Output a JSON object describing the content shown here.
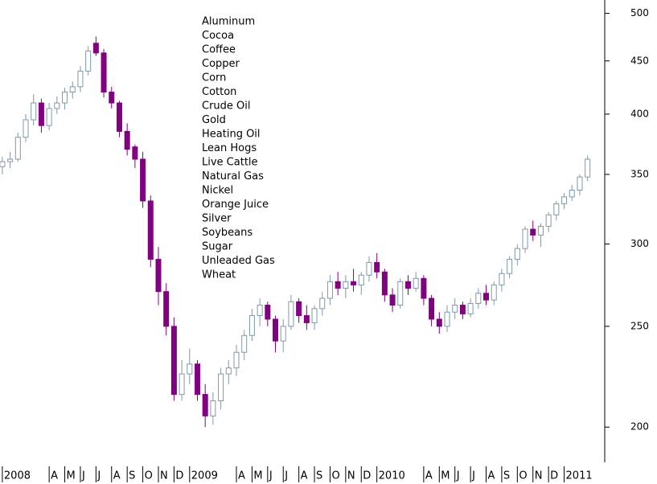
{
  "chart_data": {
    "type": "candlestick",
    "legend_items": [
      "Aluminum",
      "Cocoa",
      "Coffee",
      "Copper",
      "Corn",
      "Cotton",
      "Crude Oil",
      "Gold",
      "Heating Oil",
      "Lean Hogs",
      "Live Cattle",
      "Natural Gas",
      "Nickel",
      "Orange Juice",
      "Silver",
      "Soybeans",
      "Sugar",
      "Unleaded Gas",
      "Wheat"
    ],
    "x": [
      0,
      0.5,
      1,
      1.5,
      2,
      2.5,
      3,
      3.5,
      4,
      4.5,
      5,
      5.5,
      6,
      6.5,
      7,
      7.5,
      8,
      8.5,
      9,
      9.5,
      10,
      10.5,
      11,
      11.5,
      12,
      12.5,
      13,
      13.5,
      14,
      14.5,
      15,
      15.5,
      16,
      16.5,
      17,
      17.5,
      18,
      18.5,
      19,
      19.5,
      20,
      20.5,
      21,
      21.5,
      22,
      22.5,
      23,
      23.5,
      24,
      24.5,
      25,
      25.5,
      26,
      26.5,
      27,
      27.5,
      28,
      28.5,
      29,
      29.5,
      30,
      30.5,
      31,
      31.5,
      32,
      32.5,
      33,
      33.5,
      34,
      34.5,
      35,
      35.5,
      36,
      36.5,
      37,
      37.5
    ],
    "open": [
      356,
      360,
      362,
      380,
      395,
      410,
      390,
      405,
      410,
      420,
      425,
      440,
      468,
      458,
      420,
      410,
      385,
      372,
      362,
      330,
      290,
      270,
      250,
      215,
      225,
      230,
      215,
      205,
      212,
      225,
      228,
      236,
      245,
      256,
      262,
      254,
      242,
      250,
      264,
      256,
      252,
      260,
      266,
      276,
      272,
      276,
      274,
      280,
      288,
      282,
      268,
      262,
      276,
      272,
      278,
      266,
      254,
      250,
      258,
      262,
      257,
      263,
      269,
      265,
      274,
      281,
      290,
      297,
      310,
      306,
      312,
      320,
      328,
      333,
      338,
      348
    ],
    "high": [
      364,
      368,
      384,
      400,
      418,
      414,
      410,
      416,
      424,
      430,
      445,
      465,
      475,
      462,
      425,
      412,
      392,
      374,
      368,
      334,
      298,
      275,
      255,
      232,
      238,
      232,
      220,
      216,
      228,
      232,
      240,
      248,
      260,
      266,
      264,
      256,
      254,
      268,
      266,
      262,
      262,
      270,
      280,
      282,
      280,
      284,
      282,
      292,
      294,
      284,
      272,
      278,
      280,
      282,
      280,
      268,
      258,
      262,
      266,
      264,
      266,
      272,
      274,
      276,
      284,
      292,
      300,
      312,
      316,
      314,
      322,
      330,
      336,
      342,
      350,
      365
    ],
    "low": [
      350,
      355,
      360,
      376,
      390,
      384,
      386,
      400,
      404,
      414,
      420,
      436,
      455,
      415,
      405,
      380,
      365,
      355,
      325,
      285,
      262,
      245,
      212,
      212,
      220,
      212,
      200,
      201,
      208,
      220,
      224,
      232,
      242,
      250,
      250,
      236,
      236,
      248,
      252,
      248,
      248,
      256,
      262,
      268,
      266,
      270,
      268,
      276,
      278,
      264,
      258,
      260,
      268,
      270,
      262,
      250,
      246,
      247,
      254,
      254,
      255,
      260,
      262,
      262,
      270,
      278,
      286,
      294,
      302,
      298,
      308,
      316,
      324,
      330,
      334,
      345
    ],
    "close": [
      360,
      362,
      380,
      395,
      410,
      390,
      405,
      410,
      420,
      425,
      440,
      460,
      458,
      420,
      410,
      385,
      370,
      362,
      330,
      290,
      270,
      250,
      215,
      225,
      230,
      215,
      205,
      212,
      225,
      228,
      236,
      245,
      256,
      262,
      254,
      242,
      250,
      264,
      256,
      252,
      260,
      266,
      276,
      272,
      276,
      274,
      280,
      288,
      282,
      268,
      262,
      276,
      272,
      278,
      266,
      254,
      250,
      258,
      262,
      257,
      263,
      269,
      265,
      274,
      281,
      290,
      297,
      310,
      306,
      312,
      320,
      328,
      333,
      338,
      348,
      362
    ],
    "up_color": "#7f98a8",
    "down_color": "#800080",
    "xlim": [
      -0.15,
      38.6
    ],
    "xticks": [
      {
        "value": 0,
        "label": "2008"
      },
      {
        "value": 3,
        "label": "A"
      },
      {
        "value": 4,
        "label": "M"
      },
      {
        "value": 5,
        "label": "J"
      },
      {
        "value": 6,
        "label": "J"
      },
      {
        "value": 7,
        "label": "A"
      },
      {
        "value": 8,
        "label": "S"
      },
      {
        "value": 9,
        "label": "O"
      },
      {
        "value": 10,
        "label": "N"
      },
      {
        "value": 11,
        "label": "D"
      },
      {
        "value": 12,
        "label": "2009"
      },
      {
        "value": 15,
        "label": "A"
      },
      {
        "value": 16,
        "label": "M"
      },
      {
        "value": 17,
        "label": "J"
      },
      {
        "value": 18,
        "label": "J"
      },
      {
        "value": 19,
        "label": "A"
      },
      {
        "value": 20,
        "label": "S"
      },
      {
        "value": 21,
        "label": "O"
      },
      {
        "value": 22,
        "label": "N"
      },
      {
        "value": 23,
        "label": "D"
      },
      {
        "value": 24,
        "label": "2010"
      },
      {
        "value": 27,
        "label": "A"
      },
      {
        "value": 28,
        "label": "M"
      },
      {
        "value": 29,
        "label": "J"
      },
      {
        "value": 30,
        "label": "J"
      },
      {
        "value": 31,
        "label": "A"
      },
      {
        "value": 32,
        "label": "S"
      },
      {
        "value": 33,
        "label": "O"
      },
      {
        "value": 34,
        "label": "N"
      },
      {
        "value": 35,
        "label": "D"
      },
      {
        "value": 36,
        "label": "2011"
      }
    ],
    "ylim": [
      185,
      515
    ],
    "yticks": [
      200,
      250,
      300,
      350,
      400,
      450,
      500
    ],
    "log_scale": true
  }
}
